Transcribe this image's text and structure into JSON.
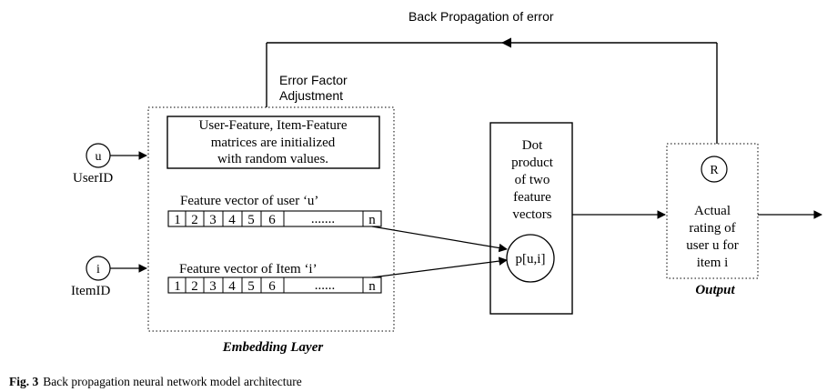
{
  "backprop_label": "Back Propagation of error",
  "error_adjust_line1": "Error Factor",
  "error_adjust_line2": "Adjustment",
  "init_box": [
    "User-Feature, Item-Feature",
    "matrices are initialized",
    "with random values."
  ],
  "user_node_symbol": "u",
  "user_node_label": "UserID",
  "item_node_symbol": "i",
  "item_node_label": "ItemID",
  "user_vector_title": "Feature vector of user ‘u’",
  "item_vector_title": "Feature vector of Item ‘i’",
  "vector_cells": [
    "1",
    "2",
    "3",
    "4",
    "5",
    "6"
  ],
  "user_vector_ellipsis": ".......",
  "item_vector_ellipsis": "......",
  "vector_last": "n",
  "embedding_label": "Embedding Layer",
  "dot_product_text": [
    "Dot",
    "product",
    "of two",
    "feature",
    "vectors"
  ],
  "dot_node_label": "p[u,i]",
  "output_node_symbol": "R",
  "output_text": [
    "Actual",
    "rating of",
    "user u for",
    "item i"
  ],
  "output_label": "Output",
  "caption_prefix": "Fig. 3",
  "caption_text": "Back propagation neural network model architecture"
}
